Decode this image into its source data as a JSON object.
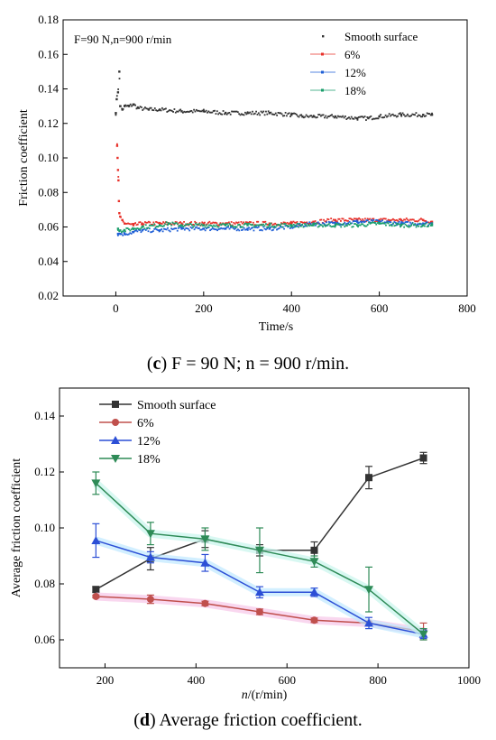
{
  "chart_data": [
    {
      "type": "scatter",
      "annotation": "F=90 N,n=900 r/min",
      "xlabel": "Time/s",
      "ylabel": "Friction coefficient",
      "xlim": [
        -120,
        800
      ],
      "ylim": [
        0.02,
        0.18
      ],
      "xticks": [
        0,
        200,
        400,
        600,
        800
      ],
      "yticks": [
        0.02,
        0.04,
        0.06,
        0.08,
        0.1,
        0.12,
        0.14,
        0.16,
        0.18
      ],
      "legend_position": "top-right",
      "series": [
        {
          "name": "Smooth surface",
          "color": "#333333",
          "x": [
            0,
            2,
            5,
            8,
            10,
            15,
            20,
            30,
            40,
            50,
            75,
            100,
            150,
            200,
            250,
            300,
            350,
            400,
            425,
            450,
            500,
            550,
            575,
            600,
            650,
            700,
            720
          ],
          "y": [
            0.126,
            0.134,
            0.138,
            0.15,
            0.13,
            0.128,
            0.13,
            0.13,
            0.131,
            0.129,
            0.128,
            0.128,
            0.127,
            0.127,
            0.126,
            0.126,
            0.126,
            0.125,
            0.124,
            0.124,
            0.124,
            0.123,
            0.123,
            0.124,
            0.125,
            0.125,
            0.125
          ]
        },
        {
          "name": "6%",
          "color": "#e8312a",
          "x": [
            3,
            4,
            5,
            6,
            7,
            8,
            10,
            15,
            20,
            40,
            60,
            100,
            150,
            200,
            250,
            300,
            350,
            400,
            450,
            500,
            550,
            600,
            650,
            700,
            720
          ],
          "y": [
            0.107,
            0.1,
            0.093,
            0.087,
            0.075,
            0.068,
            0.066,
            0.064,
            0.062,
            0.061,
            0.062,
            0.062,
            0.062,
            0.062,
            0.062,
            0.062,
            0.062,
            0.062,
            0.063,
            0.064,
            0.064,
            0.064,
            0.064,
            0.064,
            0.063
          ]
        },
        {
          "name": "12%",
          "color": "#1f5fd6",
          "x": [
            5,
            10,
            20,
            40,
            60,
            100,
            150,
            200,
            250,
            300,
            350,
            400,
            450,
            500,
            550,
            600,
            650,
            700,
            720
          ],
          "y": [
            0.056,
            0.056,
            0.056,
            0.057,
            0.058,
            0.058,
            0.059,
            0.059,
            0.059,
            0.059,
            0.059,
            0.06,
            0.062,
            0.062,
            0.063,
            0.063,
            0.062,
            0.062,
            0.062
          ]
        },
        {
          "name": "18%",
          "color": "#1a9e6b",
          "x": [
            5,
            10,
            20,
            40,
            60,
            100,
            120,
            150,
            200,
            250,
            300,
            350,
            400,
            450,
            500,
            550,
            600,
            650,
            700,
            720
          ],
          "y": [
            0.059,
            0.058,
            0.058,
            0.059,
            0.06,
            0.061,
            0.062,
            0.061,
            0.061,
            0.061,
            0.061,
            0.061,
            0.061,
            0.061,
            0.061,
            0.061,
            0.062,
            0.061,
            0.061,
            0.061
          ]
        }
      ]
    },
    {
      "type": "line",
      "xlabel": "n/(r/min)",
      "ylabel": "Average friction coefficient",
      "xlim": [
        100,
        1000
      ],
      "ylim": [
        0.05,
        0.15
      ],
      "xticks": [
        200,
        400,
        600,
        800,
        1000
      ],
      "yticks": [
        0.06,
        0.08,
        0.1,
        0.12,
        0.14
      ],
      "legend_position": "top-left",
      "x": [
        180,
        300,
        420,
        540,
        660,
        780,
        900
      ],
      "series": [
        {
          "name": "Smooth surface",
          "color": "#333333",
          "marker": "square",
          "values": [
            0.078,
            0.089,
            0.096,
            0.092,
            0.092,
            0.118,
            0.125
          ],
          "errors": [
            0.001,
            0.004,
            0.003,
            0.002,
            0.003,
            0.004,
            0.002
          ]
        },
        {
          "name": "6%",
          "color": "#c0504d",
          "marker": "circle",
          "values": [
            0.0755,
            0.0745,
            0.073,
            0.07,
            0.067,
            0.066,
            0.063
          ],
          "errors": [
            0.0005,
            0.0015,
            0.0008,
            0.001,
            0.0008,
            0.0005,
            0.003
          ]
        },
        {
          "name": "12%",
          "color": "#2c4fd6",
          "marker": "triangle-up",
          "values": [
            0.0955,
            0.0895,
            0.0875,
            0.077,
            0.077,
            0.066,
            0.062
          ],
          "errors": [
            0.006,
            0.002,
            0.003,
            0.002,
            0.0015,
            0.002,
            0.0015
          ]
        },
        {
          "name": "18%",
          "color": "#2e8b57",
          "marker": "triangle-down",
          "values": [
            0.116,
            0.098,
            0.096,
            0.092,
            0.088,
            0.078,
            0.062
          ],
          "errors": [
            0.004,
            0.004,
            0.004,
            0.008,
            0.002,
            0.008,
            0.002
          ]
        }
      ]
    }
  ],
  "captions": [
    {
      "label": "c",
      "text": " F = 90 N; n = 900 r/min."
    },
    {
      "label": "d",
      "text": " Average friction coefficient."
    }
  ]
}
